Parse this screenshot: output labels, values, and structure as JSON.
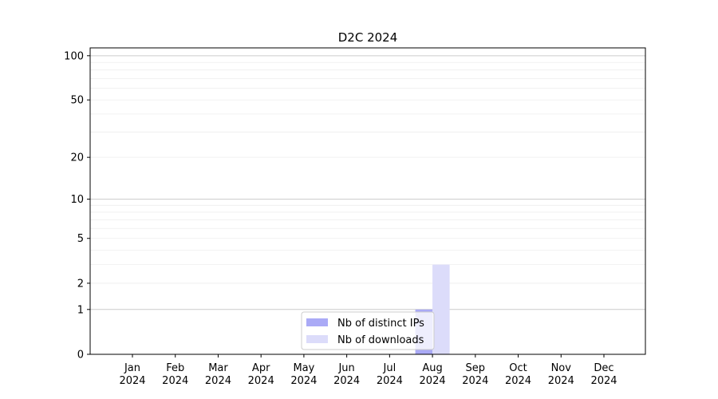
{
  "chart_data": {
    "type": "bar",
    "title": "D2C 2024",
    "xlabel": "",
    "ylabel": "",
    "yscale": "symlog (log10(1+y))",
    "ylim": [
      0,
      113
    ],
    "yticks": [
      0,
      1,
      2,
      5,
      10,
      20,
      50,
      100
    ],
    "grid": true,
    "legend_position": "lower-center",
    "categories": [
      "Jan\n2024",
      "Feb\n2024",
      "Mar\n2024",
      "Apr\n2024",
      "May\n2024",
      "Jun\n2024",
      "Jul\n2024",
      "Aug\n2024",
      "Sep\n2024",
      "Oct\n2024",
      "Nov\n2024",
      "Dec\n2024"
    ],
    "series": [
      {
        "name": "Nb of distinct IPs",
        "color": "#aaaaf6",
        "values": [
          0,
          0,
          0,
          0,
          0,
          0,
          0,
          1,
          0,
          0,
          0,
          0
        ]
      },
      {
        "name": "Nb of downloads",
        "color": "#dcdcfa",
        "values": [
          0,
          0,
          0,
          0,
          0,
          0,
          0,
          3,
          0,
          0,
          0,
          0
        ]
      }
    ]
  }
}
